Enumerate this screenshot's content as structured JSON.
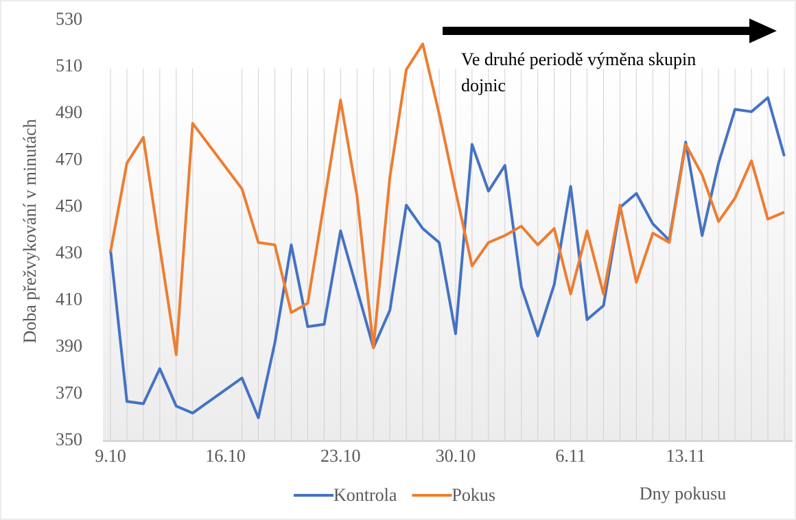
{
  "chart_data": {
    "type": "line",
    "y_label": "Doba přežvykování v minutách",
    "x_label": "Dny pokusu",
    "annotation": [
      "Ve druhé periodě výměna skupin",
      "dojnic"
    ],
    "categories": [
      "9.10",
      null,
      null,
      null,
      null,
      null,
      null,
      "16.10",
      null,
      null,
      null,
      null,
      null,
      null,
      "23.10",
      null,
      null,
      null,
      null,
      null,
      null,
      "30.10",
      null,
      null,
      null,
      null,
      null,
      null,
      "6.11",
      null,
      null,
      null,
      null,
      null,
      null,
      "13.11",
      null,
      null,
      null,
      null,
      null,
      null
    ],
    "series": [
      {
        "name": "Kontrola",
        "color": "#4472c4",
        "values": [
          432,
          367,
          366,
          381,
          365,
          362,
          null,
          null,
          377,
          360,
          392,
          434,
          399,
          400,
          440,
          415,
          390,
          406,
          451,
          441,
          435,
          396,
          477,
          457,
          468,
          416,
          395,
          417,
          459,
          402,
          408,
          450,
          456,
          443,
          436,
          478,
          438,
          469,
          492,
          491,
          497,
          472
        ]
      },
      {
        "name": "Pokus",
        "color": "#ed7d31",
        "values": [
          431,
          469,
          480,
          433,
          387,
          486,
          null,
          null,
          458,
          435,
          434,
          405,
          409,
          452,
          496,
          455,
          390,
          463,
          509,
          520,
          490,
          457,
          425,
          435,
          438,
          442,
          434,
          441,
          413,
          440,
          413,
          451,
          418,
          439,
          435,
          477,
          464,
          444,
          454,
          470,
          445,
          448
        ]
      }
    ],
    "connect_gaps": true,
    "ylim": [
      350,
      530
    ],
    "yticks": [
      350,
      370,
      390,
      410,
      430,
      450,
      470,
      490,
      510,
      530
    ],
    "grid": "x"
  }
}
